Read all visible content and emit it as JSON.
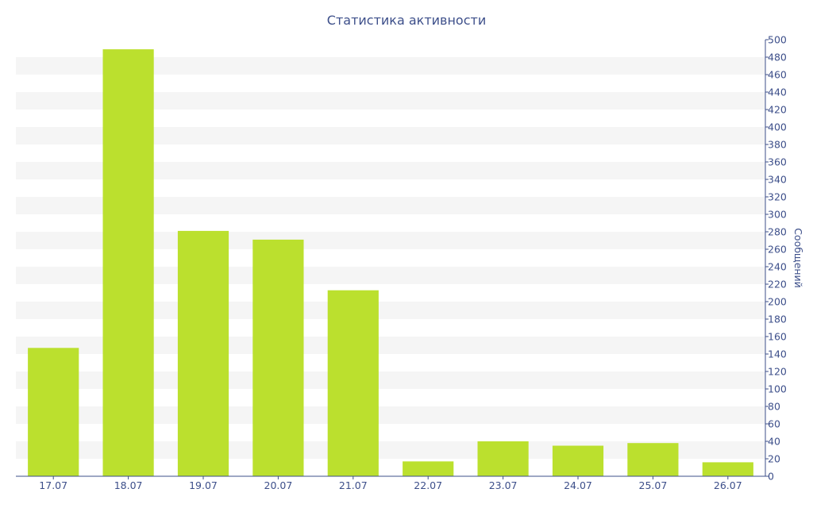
{
  "chart_data": {
    "type": "bar",
    "title": "Статистика активности",
    "xlabel": "",
    "ylabel": "Сообщений",
    "y_axis_side": "right",
    "categories": [
      "17.07",
      "18.07",
      "19.07",
      "20.07",
      "21.07",
      "22.07",
      "23.07",
      "24.07",
      "25.07",
      "26.07"
    ],
    "values": [
      147,
      489,
      281,
      271,
      213,
      17,
      40,
      35,
      38,
      16
    ],
    "ylim": [
      0,
      500
    ],
    "ytick_step": 20,
    "yticks": [
      "0",
      "20",
      "40",
      "60",
      "80",
      "100",
      "120",
      "140",
      "160",
      "180",
      "200",
      "220",
      "240",
      "260",
      "280",
      "300",
      "320",
      "340",
      "360",
      "380",
      "400",
      "420",
      "440",
      "460",
      "480",
      "500"
    ],
    "grid": "alternating horizontal bands",
    "colors": {
      "bar": "#bbe02e",
      "band": "#f5f5f5",
      "axis": "#3d4f8a",
      "text": "#3d4f8a"
    }
  }
}
